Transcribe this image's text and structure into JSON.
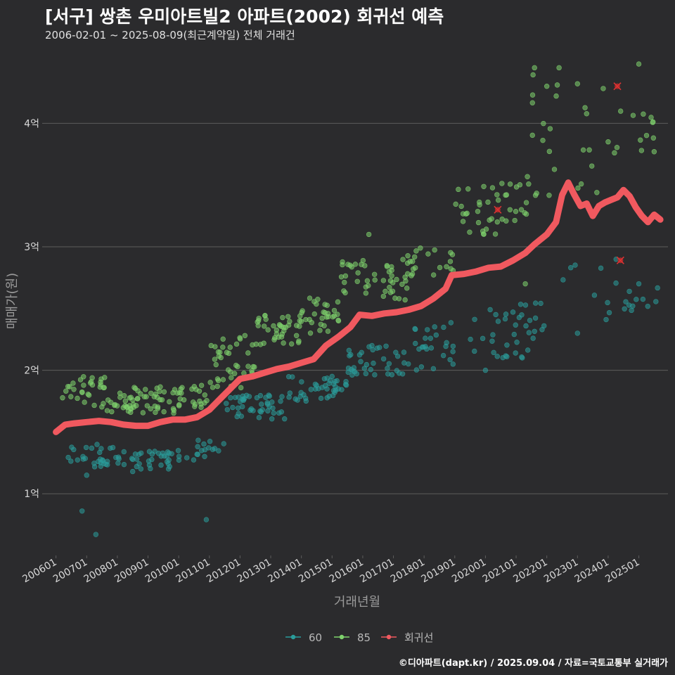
{
  "title": "[서구] 쌍촌 우미아트빌2 아파트(2002) 회귀선 예측",
  "subtitle": "2006-02-01 ~ 2025-08-09(최근계약일) 전체 거래건",
  "credit": "©디아파트(dapt.kr) / 2025.09.04 / 자료=국토교통부 실거래가",
  "colors": {
    "background": "#2b2b2d",
    "grid": "#5c5c5c",
    "series_60": "#2a9d9b",
    "series_85": "#7fd36d",
    "regression": "#f0595f",
    "axis_text": "#d8d8d8",
    "axis_title": "#9a9a9a"
  },
  "chart_data": {
    "type": "scatter",
    "xlabel": "거래년월",
    "ylabel": "매매가(원)",
    "y_unit": "억",
    "ylim": [
      0.5,
      4.6
    ],
    "xlim": [
      "2005-07",
      "2025-12"
    ],
    "yticks": [
      1,
      2,
      3,
      4
    ],
    "ytick_labels": [
      "1억",
      "2억",
      "3억",
      "4억"
    ],
    "xtick_labels": [
      "200601",
      "200701",
      "200801",
      "200901",
      "201001",
      "201101",
      "201201",
      "201301",
      "201401",
      "201501",
      "201601",
      "201701",
      "201801",
      "201901",
      "202001",
      "202101",
      "202201",
      "202301",
      "202401",
      "202501"
    ],
    "grid": true,
    "legend": {
      "position": "bottom",
      "entries": [
        "60",
        "85",
        "회귀선"
      ]
    },
    "series": [
      {
        "name": "60",
        "clusters": [
          {
            "from": 2006.2,
            "to": 2008.0,
            "ylo": 1.2,
            "yhi": 1.4,
            "n": 28
          },
          {
            "from": 2008.0,
            "to": 2010.5,
            "ylo": 1.2,
            "yhi": 1.35,
            "n": 40
          },
          {
            "from": 2010.5,
            "to": 2011.5,
            "ylo": 1.3,
            "yhi": 1.45,
            "n": 14
          },
          {
            "from": 2011.5,
            "to": 2013.5,
            "ylo": 1.6,
            "yhi": 1.8,
            "n": 45
          },
          {
            "from": 2013.5,
            "to": 2015.5,
            "ylo": 1.75,
            "yhi": 1.95,
            "n": 40
          },
          {
            "from": 2015.5,
            "to": 2017.5,
            "ylo": 1.95,
            "yhi": 2.2,
            "n": 38
          },
          {
            "from": 2017.5,
            "to": 2019.0,
            "ylo": 2.0,
            "yhi": 2.4,
            "n": 26
          },
          {
            "from": 2019.5,
            "to": 2021.5,
            "ylo": 2.1,
            "yhi": 2.5,
            "n": 26
          },
          {
            "from": 2021.0,
            "to": 2022.0,
            "ylo": 2.25,
            "yhi": 2.6,
            "n": 12
          },
          {
            "from": 2022.3,
            "to": 2024.5,
            "ylo": 2.4,
            "yhi": 2.9,
            "n": 10
          },
          {
            "from": 2024.3,
            "to": 2025.7,
            "ylo": 2.45,
            "yhi": 2.75,
            "n": 10
          }
        ],
        "points": [
          [
            2006.85,
            0.86
          ],
          [
            2007.3,
            0.67
          ],
          [
            2010.9,
            0.79
          ],
          [
            2007.0,
            1.15
          ],
          [
            2008.5,
            1.18
          ],
          [
            2015.0,
            1.95
          ],
          [
            2016.3,
            2.2
          ],
          [
            2020.0,
            2.0
          ],
          [
            2021.2,
            2.1
          ],
          [
            2023.0,
            2.3
          ],
          [
            2024.8,
            2.52
          ],
          [
            2025.0,
            2.7
          ]
        ]
      },
      {
        "name": "85",
        "clusters": [
          {
            "from": 2006.2,
            "to": 2007.6,
            "ylo": 1.7,
            "yhi": 1.95,
            "n": 30
          },
          {
            "from": 2007.6,
            "to": 2008.5,
            "ylo": 1.65,
            "yhi": 1.82,
            "n": 22
          },
          {
            "from": 2008.5,
            "to": 2010.0,
            "ylo": 1.65,
            "yhi": 1.88,
            "n": 38
          },
          {
            "from": 2010.0,
            "to": 2011.0,
            "ylo": 1.7,
            "yhi": 1.9,
            "n": 22
          },
          {
            "from": 2011.0,
            "to": 2012.5,
            "ylo": 1.85,
            "yhi": 2.3,
            "n": 40
          },
          {
            "from": 2012.5,
            "to": 2014.0,
            "ylo": 2.2,
            "yhi": 2.45,
            "n": 40
          },
          {
            "from": 2014.0,
            "to": 2015.3,
            "ylo": 2.3,
            "yhi": 2.6,
            "n": 30
          },
          {
            "from": 2015.3,
            "to": 2016.5,
            "ylo": 2.6,
            "yhi": 2.9,
            "n": 22
          },
          {
            "from": 2016.5,
            "to": 2017.5,
            "ylo": 2.55,
            "yhi": 2.95,
            "n": 26
          },
          {
            "from": 2017.5,
            "to": 2019.0,
            "ylo": 2.75,
            "yhi": 3.0,
            "n": 20
          },
          {
            "from": 2019.0,
            "to": 2020.5,
            "ylo": 3.1,
            "yhi": 3.5,
            "n": 26
          },
          {
            "from": 2020.5,
            "to": 2021.5,
            "ylo": 3.2,
            "yhi": 3.6,
            "n": 16
          },
          {
            "from": 2021.5,
            "to": 2022.4,
            "ylo": 3.4,
            "yhi": 4.45,
            "n": 14
          },
          {
            "from": 2023.0,
            "to": 2024.0,
            "ylo": 3.3,
            "yhi": 4.3,
            "n": 10
          },
          {
            "from": 2024.0,
            "to": 2025.5,
            "ylo": 3.75,
            "yhi": 4.1,
            "n": 12
          }
        ],
        "points": [
          [
            2016.2,
            3.1
          ],
          [
            2021.6,
            4.45
          ],
          [
            2022.4,
            4.45
          ],
          [
            2025.0,
            4.48
          ],
          [
            2021.3,
            2.7
          ],
          [
            2020.8,
            3.3
          ],
          [
            2022.0,
            4.3
          ],
          [
            2023.0,
            4.32
          ],
          [
            2024.0,
            3.85
          ],
          [
            2025.5,
            3.77
          ]
        ]
      },
      {
        "name": "회귀선",
        "x": [
          2006.0,
          2006.3,
          2006.6,
          2007.0,
          2007.4,
          2007.8,
          2008.2,
          2008.6,
          2009.0,
          2009.4,
          2009.8,
          2010.2,
          2010.6,
          2011.0,
          2011.4,
          2011.8,
          2012.0,
          2012.4,
          2012.8,
          2013.2,
          2013.6,
          2014.0,
          2014.4,
          2014.8,
          2015.2,
          2015.6,
          2015.9,
          2016.3,
          2016.7,
          2017.1,
          2017.5,
          2017.9,
          2018.3,
          2018.7,
          2018.9,
          2019.3,
          2019.7,
          2020.1,
          2020.5,
          2020.9,
          2021.3,
          2021.6,
          2022.0,
          2022.3,
          2022.5,
          2022.7,
          2022.9,
          2023.1,
          2023.3,
          2023.5,
          2023.7,
          2023.9,
          2024.1,
          2024.3,
          2024.5,
          2024.7,
          2024.9,
          2025.1,
          2025.3,
          2025.5,
          2025.7
        ],
        "values": [
          1.5,
          1.56,
          1.57,
          1.58,
          1.59,
          1.58,
          1.56,
          1.55,
          1.55,
          1.58,
          1.6,
          1.6,
          1.62,
          1.68,
          1.78,
          1.88,
          1.93,
          1.95,
          1.98,
          2.01,
          2.03,
          2.06,
          2.09,
          2.2,
          2.27,
          2.35,
          2.45,
          2.44,
          2.46,
          2.47,
          2.49,
          2.52,
          2.58,
          2.66,
          2.77,
          2.78,
          2.8,
          2.83,
          2.84,
          2.89,
          2.95,
          3.02,
          3.1,
          3.2,
          3.42,
          3.52,
          3.42,
          3.33,
          3.35,
          3.25,
          3.33,
          3.36,
          3.38,
          3.4,
          3.46,
          3.41,
          3.32,
          3.25,
          3.2,
          3.26,
          3.22
        ]
      }
    ],
    "markers": [
      {
        "x": 2020.4,
        "y": 3.3
      },
      {
        "x": 2024.3,
        "y": 4.3
      },
      {
        "x": 2024.4,
        "y": 2.89
      }
    ]
  }
}
